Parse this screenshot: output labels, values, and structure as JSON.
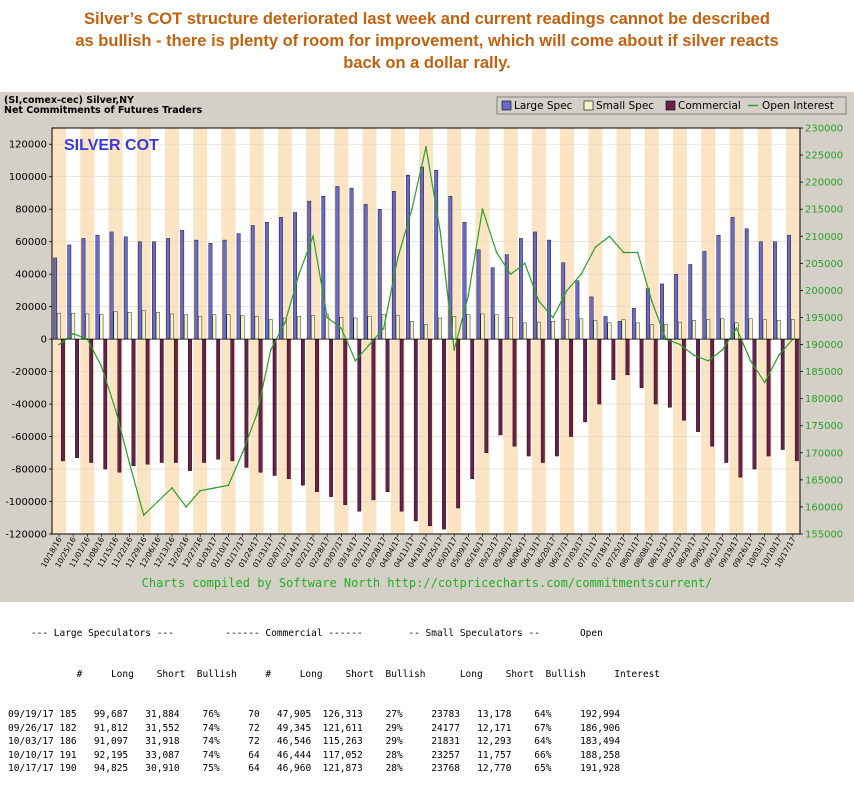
{
  "headline": [
    "Silver’s COT structure deteriorated last week and current readings cannot be described",
    "as bullish - there is plenty of room for improvement, which will come about if silver reacts",
    "back on a dollar rally."
  ],
  "chart_header": {
    "line1": "(SI,comex-cec) Silver,NY",
    "line2": "Net Commitments of Futures Traders"
  },
  "watermark": "SILVER COT",
  "footer_note": "Charts compiled by Software North  http://cotpricecharts.com/commitmentscurrent/",
  "colors": {
    "large_spec": "#6a6acc",
    "small_spec": "#f4f4cc",
    "commercial": "#6b1f4b",
    "open_interest": "#2aa02a",
    "stripe": "#fbe4c4",
    "panel": "#d4d0c8"
  },
  "chart_data": {
    "type": "bar",
    "dates": [
      "10/18/16",
      "10/25/16",
      "11/01/16",
      "11/08/16",
      "11/15/16",
      "11/22/16",
      "11/29/16",
      "12/06/16",
      "12/13/16",
      "12/20/16",
      "12/27/16",
      "01/03/17",
      "01/10/17",
      "01/17/17",
      "01/24/17",
      "01/31/17",
      "02/07/17",
      "02/14/17",
      "02/21/17",
      "02/28/17",
      "03/07/17",
      "03/14/17",
      "03/21/17",
      "03/28/17",
      "04/04/17",
      "04/11/17",
      "04/18/17",
      "04/25/17",
      "05/02/17",
      "05/09/17",
      "05/16/17",
      "05/23/17",
      "05/30/17",
      "06/06/17",
      "06/13/17",
      "06/20/17",
      "06/27/17",
      "07/03/17",
      "07/11/17",
      "07/18/17",
      "07/25/17",
      "08/01/17",
      "08/08/17",
      "08/15/17",
      "08/22/17",
      "08/29/17",
      "09/05/17",
      "09/12/17",
      "09/19/17",
      "09/26/17",
      "10/03/17",
      "10/10/17",
      "10/17/17"
    ],
    "x_tick_labels": [
      "10/18/16",
      "10/25/16",
      "11/01/16",
      "11/08/16",
      "11/15/16",
      "11/22/16",
      "11/29/16",
      "12/06/16",
      "12/13/16",
      "12/20/16",
      "12/27/16",
      "01/03/17",
      "01/10/17",
      "01/17/17",
      "01/24/17",
      "01/31/17",
      "02/07/17",
      "02/14/17",
      "02/21/17",
      "02/28/17",
      "03/07/17",
      "03/14/17",
      "03/21/17",
      "03/28/17",
      "04/04/17",
      "04/11/17",
      "04/18/17",
      "04/25/17",
      "05/02/17",
      "05/09/17",
      "05/16/17",
      "05/23/17",
      "05/30/17",
      "06/06/17",
      "06/13/17",
      "06/20/17",
      "06/27/17",
      "07/03/17",
      "07/11/17",
      "07/18/17",
      "07/25/17",
      "08/01/17",
      "08/08/17",
      "08/15/17",
      "08/22/17",
      "08/29/17",
      "09/05/17",
      "09/12/17",
      "09/19/17",
      "09/26/17",
      "10/03/17",
      "10/10/17",
      "10/17/17"
    ],
    "series": [
      {
        "name": "Large Spec",
        "axis": "left",
        "values": [
          50000,
          58000,
          62000,
          64000,
          66000,
          63000,
          60000,
          60000,
          62000,
          67000,
          61000,
          59000,
          61000,
          65000,
          70000,
          72000,
          75000,
          78000,
          85000,
          88000,
          94000,
          93000,
          83000,
          80000,
          91000,
          101000,
          106000,
          104000,
          88000,
          72000,
          55000,
          44000,
          52000,
          62000,
          66000,
          61000,
          47000,
          36000,
          26000,
          14000,
          11000,
          19000,
          31000,
          34000,
          40000,
          46000,
          54000,
          64000,
          75000,
          68000,
          60000,
          60000,
          64000
        ]
      },
      {
        "name": "Small Spec",
        "axis": "left",
        "values": [
          16000,
          16000,
          15500,
          15000,
          17000,
          16500,
          17500,
          16500,
          15500,
          15000,
          14000,
          15000,
          15000,
          14500,
          14000,
          12000,
          13000,
          14000,
          14500,
          15000,
          13500,
          13000,
          14000,
          15000,
          14500,
          11000,
          9000,
          13000,
          14000,
          15000,
          15500,
          15000,
          13500,
          10000,
          10500,
          11000,
          12000,
          12500,
          11500,
          10000,
          12000,
          10000,
          9000,
          9000,
          10500,
          11500,
          12000,
          12500,
          10000,
          12500,
          12000,
          11500,
          12000
        ]
      },
      {
        "name": "Commercial",
        "axis": "left",
        "values": [
          -75000,
          -73000,
          -76000,
          -80000,
          -82000,
          -78000,
          -77000,
          -76000,
          -76000,
          -81000,
          -76000,
          -74000,
          -75000,
          -79000,
          -82000,
          -84000,
          -86000,
          -90000,
          -94000,
          -97000,
          -102000,
          -106000,
          -99000,
          -94000,
          -106000,
          -112000,
          -115000,
          -117000,
          -104000,
          -86000,
          -70000,
          -59000,
          -66000,
          -72000,
          -76000,
          -72000,
          -60000,
          -51000,
          -40000,
          -25000,
          -22000,
          -30000,
          -40000,
          -42000,
          -50000,
          -57000,
          -66000,
          -76000,
          -85000,
          -80000,
          -72000,
          -68000,
          -75000
        ]
      },
      {
        "name": "Open Interest",
        "axis": "right",
        "values": [
          190000,
          192000,
          191000,
          186000,
          178000,
          168000,
          158500,
          161000,
          163500,
          160000,
          163000,
          163500,
          164000,
          170000,
          177000,
          189000,
          194000,
          203000,
          210000,
          195000,
          193000,
          187000,
          190000,
          193000,
          206000,
          215000,
          226500,
          211000,
          189000,
          199000,
          215000,
          207000,
          203000,
          205000,
          198000,
          195000,
          200000,
          203000,
          208000,
          210000,
          207000,
          207000,
          198000,
          191000,
          190000,
          188000,
          187000,
          189000,
          193000,
          187000,
          183000,
          188000,
          191000
        ]
      }
    ],
    "ylim": [
      -120000,
      130000
    ],
    "y_ticks": [
      -120000,
      -100000,
      -80000,
      -60000,
      -40000,
      -20000,
      0,
      20000,
      40000,
      60000,
      80000,
      100000,
      120000
    ],
    "y_tick_labels": [
      "-120000",
      "-100000",
      "-80000",
      "-60000",
      "-40000",
      "-20000",
      "0",
      "20000",
      "40000",
      "60000",
      "80000",
      "100000",
      "120000"
    ],
    "y2lim": [
      155000,
      230000
    ],
    "y2_ticks": [
      155000,
      160000,
      165000,
      170000,
      175000,
      180000,
      185000,
      190000,
      195000,
      200000,
      205000,
      210000,
      215000,
      220000,
      225000,
      230000
    ],
    "y2_tick_labels": [
      "155000",
      "160000",
      "165000",
      "170000",
      "175000",
      "180000",
      "185000",
      "190000",
      "195000",
      "200000",
      "205000",
      "210000",
      "215000",
      "220000",
      "225000",
      "230000"
    ],
    "legend_placement": "top-right"
  },
  "table": {
    "group_header": "    --- Large Speculators ---         ------ Commercial ------        -- Small Speculators --       Open",
    "col_header": "            #     Long    Short  Bullish     #     Long    Short  Bullish      Long    Short  Bullish     Interest",
    "rows": [
      {
        "date": "09/19/17",
        "ls_n": "185",
        "ls_long": "99,687",
        "ls_short": "31,884",
        "ls_bull": "76%",
        "c_n": "70",
        "c_long": "47,905",
        "c_short": "126,313",
        "c_bull": "27%",
        "ss_long": "23783",
        "ss_short": "13,178",
        "ss_bull": "64%",
        "oi": "192,994"
      },
      {
        "date": "09/26/17",
        "ls_n": "182",
        "ls_long": "91,812",
        "ls_short": "31,552",
        "ls_bull": "74%",
        "c_n": "72",
        "c_long": "49,345",
        "c_short": "121,611",
        "c_bull": "29%",
        "ss_long": "24177",
        "ss_short": "12,171",
        "ss_bull": "67%",
        "oi": "186,906"
      },
      {
        "date": "10/03/17",
        "ls_n": "186",
        "ls_long": "91,097",
        "ls_short": "31,918",
        "ls_bull": "74%",
        "c_n": "72",
        "c_long": "46,546",
        "c_short": "115,263",
        "c_bull": "29%",
        "ss_long": "21831",
        "ss_short": "12,293",
        "ss_bull": "64%",
        "oi": "183,494"
      },
      {
        "date": "10/10/17",
        "ls_n": "191",
        "ls_long": "92,195",
        "ls_short": "33,087",
        "ls_bull": "74%",
        "c_n": "64",
        "c_long": "46,444",
        "c_short": "117,052",
        "c_bull": "28%",
        "ss_long": "23257",
        "ss_short": "11,757",
        "ss_bull": "66%",
        "oi": "188,258"
      },
      {
        "date": "10/17/17",
        "ls_n": "190",
        "ls_long": "94,825",
        "ls_short": "30,910",
        "ls_bull": "75%",
        "c_n": "64",
        "c_long": "46,960",
        "c_short": "121,873",
        "c_bull": "28%",
        "ss_long": "23768",
        "ss_short": "12,770",
        "ss_bull": "65%",
        "oi": "191,928"
      }
    ]
  }
}
